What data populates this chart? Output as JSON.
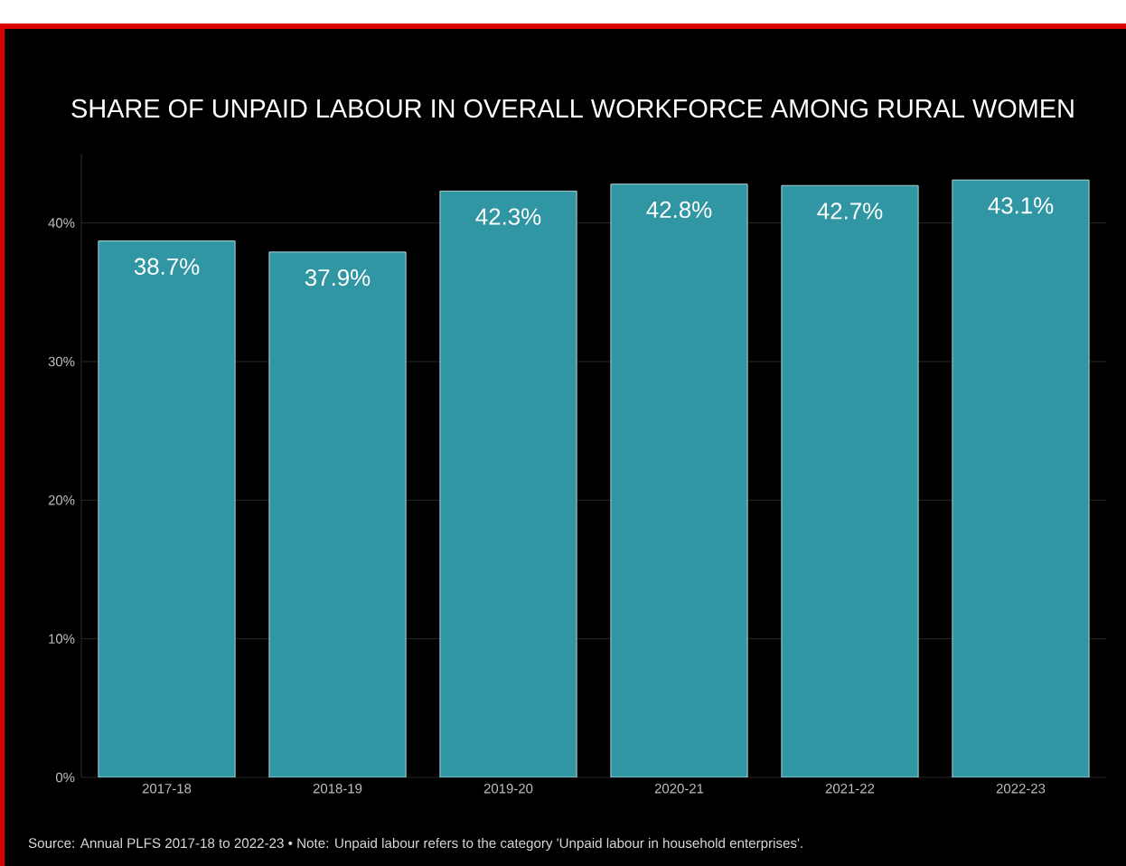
{
  "chart_data": {
    "type": "bar",
    "title": "SHARE OF UNPAID LABOUR IN OVERALL WORKFORCE AMONG RURAL WOMEN",
    "categories": [
      "2017-18",
      "2018-19",
      "2019-20",
      "2020-21",
      "2021-22",
      "2022-23"
    ],
    "values": [
      38.7,
      37.9,
      42.3,
      42.8,
      42.7,
      43.1
    ],
    "value_labels": [
      "38.7%",
      "37.9%",
      "42.3%",
      "42.8%",
      "42.7%",
      "43.1%"
    ],
    "color": "#3196a3",
    "ylim": [
      0,
      45
    ],
    "yticks": [
      {
        "value": 0,
        "label": "0%"
      },
      {
        "value": 10,
        "label": "10%"
      },
      {
        "value": 20,
        "label": "20%"
      },
      {
        "value": 30,
        "label": "30%"
      },
      {
        "value": 40,
        "label": "40%"
      }
    ],
    "grid": "y",
    "annotations": [
      "Source: Annual PLFS 2017-18 to 2022-23 • Note: Unpaid labour refers to the category 'Unpaid labour in household enterprises'."
    ]
  }
}
